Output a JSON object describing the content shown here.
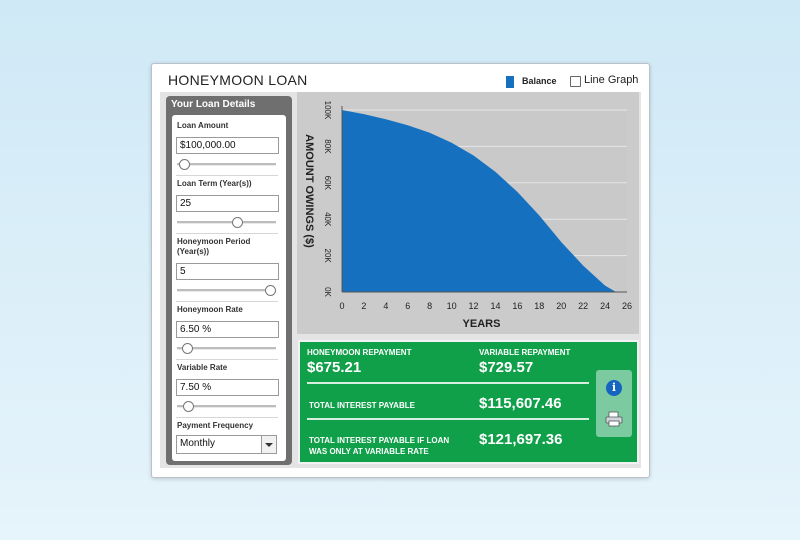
{
  "header": {
    "title": "HONEYMOON LOAN",
    "legend": {
      "balance_label": "Balance",
      "balance_color": "#1570bf",
      "line_graph_label": "Line Graph",
      "line_graph_checked": false
    }
  },
  "sidebar": {
    "title": "Your Loan Details",
    "loan_amount": {
      "label": "Loan Amount",
      "value": "$100,000.00"
    },
    "loan_term": {
      "label": "Loan Term (Year(s))",
      "value": "25"
    },
    "honeymoon_period": {
      "label": "Honeymoon Period (Year(s))",
      "value": "5"
    },
    "honeymoon_rate": {
      "label": "Honeymoon Rate",
      "value": "6.50 %"
    },
    "variable_rate": {
      "label": "Variable Rate",
      "value": "7.50 %"
    },
    "payment_frequency": {
      "label": "Payment Frequency",
      "value": "Monthly"
    }
  },
  "slider_levels": {
    "loan_amount": 0.02,
    "loan_term": 0.61,
    "honeymoon_period": 0.98,
    "honeymoon_rate": 0.06,
    "variable_rate": 0.07
  },
  "chart_data": {
    "type": "area",
    "title": "",
    "xlabel": "YEARS",
    "ylabel": "AMOUNT OWINGS ($)",
    "xlim": [
      0,
      26
    ],
    "ylim": [
      0,
      100000
    ],
    "x_ticks": [
      "0",
      "2",
      "4",
      "6",
      "8",
      "10",
      "12",
      "14",
      "16",
      "18",
      "20",
      "22",
      "24",
      "26"
    ],
    "y_ticks": [
      "0K",
      "20K",
      "40K",
      "60K",
      "80K",
      "100K"
    ],
    "grid": true,
    "series": [
      {
        "name": "Balance",
        "color": "#1570bf",
        "x": [
          0,
          2,
          4,
          6,
          8,
          10,
          12,
          14,
          16,
          18,
          20,
          22,
          24,
          25
        ],
        "values": [
          100000,
          97700,
          94900,
          91600,
          87500,
          82000,
          75000,
          66000,
          55000,
          42000,
          27500,
          14500,
          3500,
          0
        ]
      }
    ]
  },
  "results": {
    "honeymoon_repayment_label": "HONEYMOON REPAYMENT",
    "honeymoon_repayment_value": "$675.21",
    "variable_repayment_label": "VARIABLE REPAYMENT",
    "variable_repayment_value": "$729.57",
    "total_interest_label": "TOTAL INTEREST PAYABLE",
    "total_interest_value": "$115,607.46",
    "total_interest_variable_label_1": "TOTAL INTEREST PAYABLE IF LOAN",
    "total_interest_variable_label_2": "WAS ONLY AT VARIABLE RATE",
    "total_interest_variable_value": "$121,697.36",
    "info_icon": "info-icon",
    "print_icon": "print-icon"
  }
}
